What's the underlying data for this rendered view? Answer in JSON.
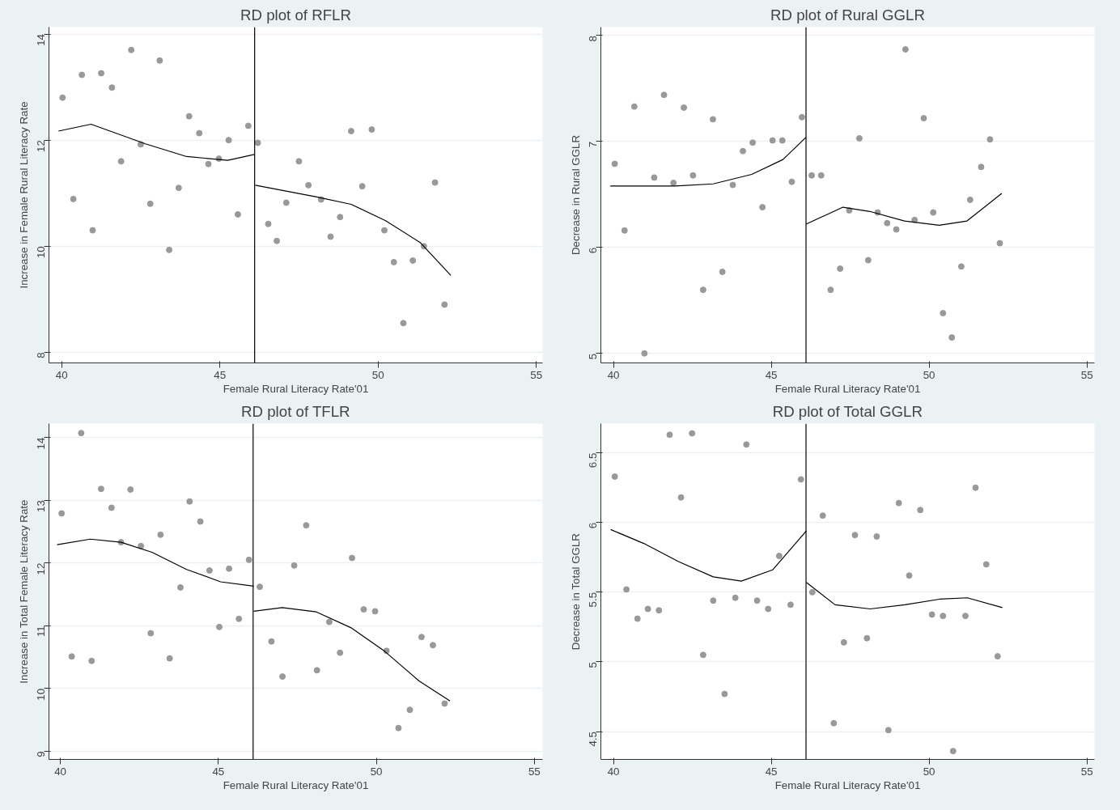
{
  "chart_data": [
    {
      "type": "scatter",
      "title": "RD plot of RFLR",
      "xlabel": "Female Rural Literacy Rate'01",
      "ylabel": "Increase in Female Rural Literacy Rate",
      "xlim": [
        39.6,
        55.2
      ],
      "ylim": [
        7.8,
        14.13
      ],
      "xticks": [
        40,
        45,
        50,
        55
      ],
      "yticks": [
        8,
        10,
        12,
        14
      ],
      "grid": "y",
      "ref_lines": [
        {
          "axis": "x",
          "value": 46.1,
          "color": "#000000"
        }
      ],
      "series": [
        {
          "marker": "circle",
          "color": "#999999",
          "x": [
            40.03,
            40.37,
            40.64,
            40.98,
            41.25,
            41.59,
            41.88,
            42.2,
            42.5,
            42.8,
            43.1,
            43.4,
            43.7,
            44.03,
            44.35,
            44.64,
            44.97,
            45.28,
            45.57,
            45.9,
            46.2,
            46.53,
            46.8,
            47.1,
            47.5,
            47.8,
            48.2,
            48.5,
            48.8,
            49.15,
            49.5,
            49.8,
            50.2,
            50.5,
            50.8,
            51.1,
            51.45,
            51.8,
            52.1
          ],
          "values": [
            12.8,
            10.89,
            13.23,
            10.3,
            13.26,
            12.99,
            11.6,
            13.7,
            11.92,
            10.8,
            13.5,
            9.93,
            11.1,
            12.45,
            12.13,
            11.55,
            11.65,
            12.0,
            10.6,
            12.27,
            11.95,
            10.42,
            10.1,
            10.82,
            11.6,
            11.15,
            10.88,
            10.18,
            10.55,
            12.17,
            11.13,
            12.2,
            10.3,
            9.7,
            8.55,
            9.73,
            10.0,
            11.2,
            8.9
          ]
        },
        {
          "type": "line",
          "color": "#000000",
          "x": [
            39.9,
            40.93,
            42.65,
            43.95,
            45.25,
            46.09
          ],
          "values": [
            12.17,
            12.3,
            11.93,
            11.69,
            11.62,
            11.73
          ]
        },
        {
          "type": "line",
          "color": "#000000",
          "x": [
            46.12,
            48.06,
            49.15,
            50.24,
            51.33,
            52.3
          ],
          "values": [
            11.15,
            10.93,
            10.79,
            10.48,
            10.07,
            9.45
          ]
        }
      ]
    },
    {
      "type": "scatter",
      "title": "RD plot of Rural GGLR",
      "xlabel": "Female Rural Literacy Rate'01",
      "ylabel": "Decrease in Rural GGLR",
      "xlim": [
        39.6,
        55.24
      ],
      "ylim": [
        4.91,
        8.08
      ],
      "xticks": [
        40,
        45,
        50,
        55
      ],
      "yticks": [
        5,
        6,
        7,
        8
      ],
      "grid": "y",
      "ref_lines": [
        {
          "axis": "x",
          "value": 46.1,
          "color": "#000000"
        }
      ],
      "series": [
        {
          "marker": "circle",
          "color": "#999999",
          "x": [
            40.04,
            40.35,
            40.66,
            40.98,
            41.29,
            41.6,
            41.9,
            42.23,
            42.52,
            42.84,
            43.15,
            43.45,
            43.78,
            44.1,
            44.41,
            44.72,
            45.04,
            45.35,
            45.65,
            45.97,
            46.28,
            46.58,
            46.88,
            47.18,
            47.47,
            47.79,
            48.07,
            48.37,
            48.67,
            48.96,
            49.25,
            49.54,
            49.83,
            50.13,
            50.44,
            50.72,
            51.02,
            51.3,
            51.65,
            51.93,
            52.24
          ],
          "values": [
            6.79,
            6.16,
            7.33,
            5.0,
            6.66,
            7.44,
            6.61,
            7.32,
            6.68,
            5.6,
            7.21,
            5.77,
            6.59,
            6.91,
            6.99,
            6.38,
            7.01,
            7.01,
            6.62,
            7.23,
            6.68,
            6.68,
            5.6,
            5.8,
            6.35,
            7.03,
            5.88,
            6.33,
            6.23,
            6.17,
            7.87,
            6.26,
            7.22,
            6.33,
            5.38,
            5.15,
            5.82,
            6.45,
            6.76,
            7.02,
            6.04
          ]
        },
        {
          "type": "line",
          "color": "#000000",
          "x": [
            39.9,
            41.95,
            43.16,
            44.38,
            45.37,
            46.1
          ],
          "values": [
            6.58,
            6.58,
            6.6,
            6.69,
            6.83,
            7.04
          ]
        },
        {
          "type": "line",
          "color": "#000000",
          "x": [
            46.1,
            47.27,
            48.12,
            49.22,
            50.32,
            51.2,
            52.3
          ],
          "values": [
            6.22,
            6.38,
            6.34,
            6.25,
            6.21,
            6.25,
            6.51
          ]
        }
      ]
    },
    {
      "type": "scatter",
      "title": "RD plot of TFLR",
      "xlabel": "Female Rural Literacy Rate'01",
      "ylabel": "Increase in Total Female Literacy Rate",
      "xlim": [
        39.64,
        55.26
      ],
      "ylim": [
        8.87,
        14.22
      ],
      "xticks": [
        40,
        45,
        50,
        55
      ],
      "yticks": [
        9,
        10,
        11,
        12,
        13,
        14
      ],
      "grid": "y",
      "ref_lines": [
        {
          "axis": "x",
          "value": 46.1,
          "color": "#000000"
        }
      ],
      "series": [
        {
          "marker": "circle",
          "color": "#999999",
          "x": [
            40.04,
            40.36,
            40.66,
            40.99,
            41.29,
            41.62,
            41.92,
            42.22,
            42.55,
            42.86,
            43.17,
            43.46,
            43.8,
            44.09,
            44.43,
            44.72,
            45.03,
            45.34,
            45.65,
            45.97,
            46.31,
            46.68,
            47.03,
            47.4,
            47.78,
            48.12,
            48.51,
            48.85,
            49.23,
            49.6,
            49.96,
            50.32,
            50.7,
            51.06,
            51.43,
            51.79,
            52.16
          ],
          "values": [
            12.79,
            10.51,
            14.07,
            10.44,
            13.18,
            12.88,
            12.33,
            13.17,
            12.27,
            10.88,
            12.45,
            10.48,
            11.61,
            12.98,
            12.66,
            11.88,
            10.98,
            11.91,
            11.11,
            12.05,
            11.62,
            10.75,
            10.19,
            11.96,
            12.6,
            10.29,
            11.06,
            10.57,
            12.08,
            11.26,
            11.23,
            10.6,
            9.37,
            9.66,
            10.82,
            10.69,
            9.76
          ]
        },
        {
          "type": "line",
          "color": "#000000",
          "x": [
            39.9,
            40.95,
            41.92,
            42.9,
            43.98,
            45.07,
            46.12
          ],
          "values": [
            12.29,
            12.38,
            12.33,
            12.17,
            11.9,
            11.7,
            11.63
          ]
        },
        {
          "type": "line",
          "color": "#000000",
          "x": [
            46.12,
            47.02,
            48.1,
            49.19,
            50.27,
            51.35,
            52.33
          ],
          "values": [
            11.23,
            11.29,
            11.22,
            10.97,
            10.59,
            10.12,
            9.8
          ]
        }
      ]
    },
    {
      "type": "scatter",
      "title": "RD plot of Total GGLR",
      "xlabel": "Female Rural Literacy Rate'01",
      "ylabel": "Decrease in Total GGLR",
      "xlim": [
        39.6,
        55.24
      ],
      "ylim": [
        4.3,
        6.71
      ],
      "xticks": [
        40,
        45,
        50,
        55
      ],
      "yticks": [
        4.5,
        5,
        5.5,
        6,
        6.5
      ],
      "grid": "y",
      "ref_lines": [
        {
          "axis": "x",
          "value": 46.1,
          "color": "#000000"
        }
      ],
      "series": [
        {
          "marker": "circle",
          "color": "#999999",
          "x": [
            40.04,
            40.41,
            40.76,
            41.09,
            41.44,
            41.78,
            42.14,
            42.49,
            42.84,
            43.16,
            43.52,
            43.86,
            44.21,
            44.55,
            44.9,
            45.25,
            45.61,
            45.94,
            46.3,
            46.63,
            46.98,
            47.3,
            47.65,
            48.03,
            48.34,
            48.71,
            49.04,
            49.37,
            49.72,
            50.09,
            50.44,
            50.76,
            51.15,
            51.47,
            51.81,
            52.17
          ],
          "values": [
            6.33,
            5.52,
            5.31,
            5.38,
            5.37,
            6.63,
            6.18,
            6.64,
            5.05,
            5.44,
            4.77,
            5.46,
            6.56,
            5.44,
            5.38,
            5.76,
            5.41,
            6.31,
            5.5,
            6.05,
            4.56,
            5.14,
            5.91,
            5.17,
            5.9,
            4.51,
            6.14,
            5.62,
            6.09,
            5.34,
            5.33,
            4.36,
            5.33,
            6.25,
            5.7,
            5.04
          ]
        },
        {
          "type": "line",
          "color": "#000000",
          "x": [
            39.91,
            40.96,
            42.06,
            43.16,
            44.05,
            45.04,
            46.11
          ],
          "values": [
            5.95,
            5.85,
            5.72,
            5.61,
            5.58,
            5.66,
            5.94
          ]
        },
        {
          "type": "line",
          "color": "#000000",
          "x": [
            46.11,
            47.02,
            48.13,
            49.23,
            50.33,
            51.21,
            52.32
          ],
          "values": [
            5.57,
            5.41,
            5.38,
            5.41,
            5.45,
            5.46,
            5.39
          ]
        }
      ]
    }
  ]
}
